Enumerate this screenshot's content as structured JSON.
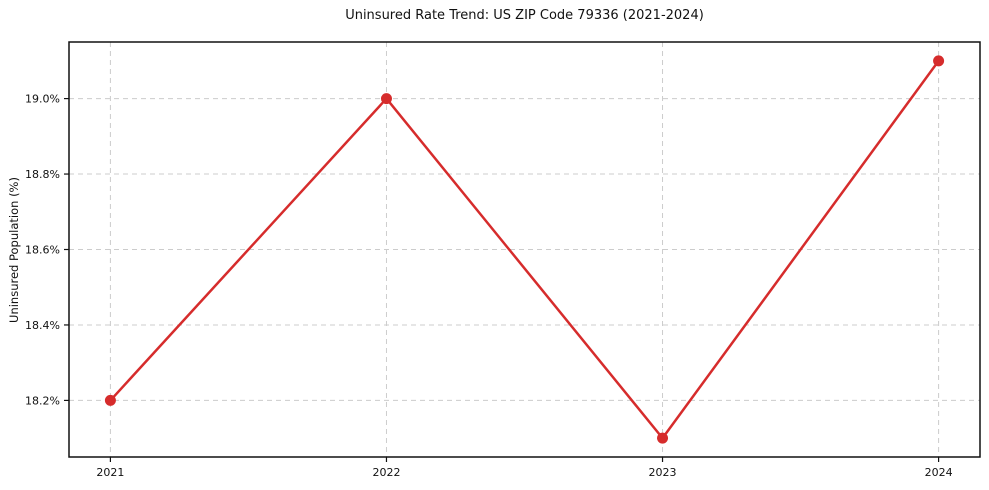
{
  "header": {
    "title": "Uninsured Rate Trend: US ZIP Code 79336 (2021-2024)"
  },
  "chart_data": {
    "type": "line",
    "title": "Uninsured Rate Trend: US ZIP Code 79336 (2021-2024)",
    "xlabel": "",
    "ylabel": "Uninsured Population (%)",
    "x": [
      2021,
      2022,
      2023,
      2024
    ],
    "series": [
      {
        "name": "Uninsured rate",
        "values": [
          18.2,
          19.0,
          18.1,
          19.1
        ]
      }
    ],
    "xticks": [
      2021,
      2022,
      2023,
      2024
    ],
    "xtick_labels": [
      "2021",
      "2022",
      "2023",
      "2024"
    ],
    "yticks": [
      18.2,
      18.4,
      18.6,
      18.8,
      19.0
    ],
    "ytick_labels": [
      "18.2%",
      "18.4%",
      "18.6%",
      "18.8%",
      "19.0%"
    ],
    "xlim": [
      2020.85,
      2024.15
    ],
    "ylim": [
      18.05,
      19.15
    ],
    "grid": true,
    "grid_style": "dashed",
    "legend": "none",
    "colors": {
      "line": "#d62c2c",
      "marker": "#d62c2c",
      "grid": "#cccccc",
      "axis": "#111111",
      "text": "#111111",
      "background": "#ffffff"
    }
  }
}
